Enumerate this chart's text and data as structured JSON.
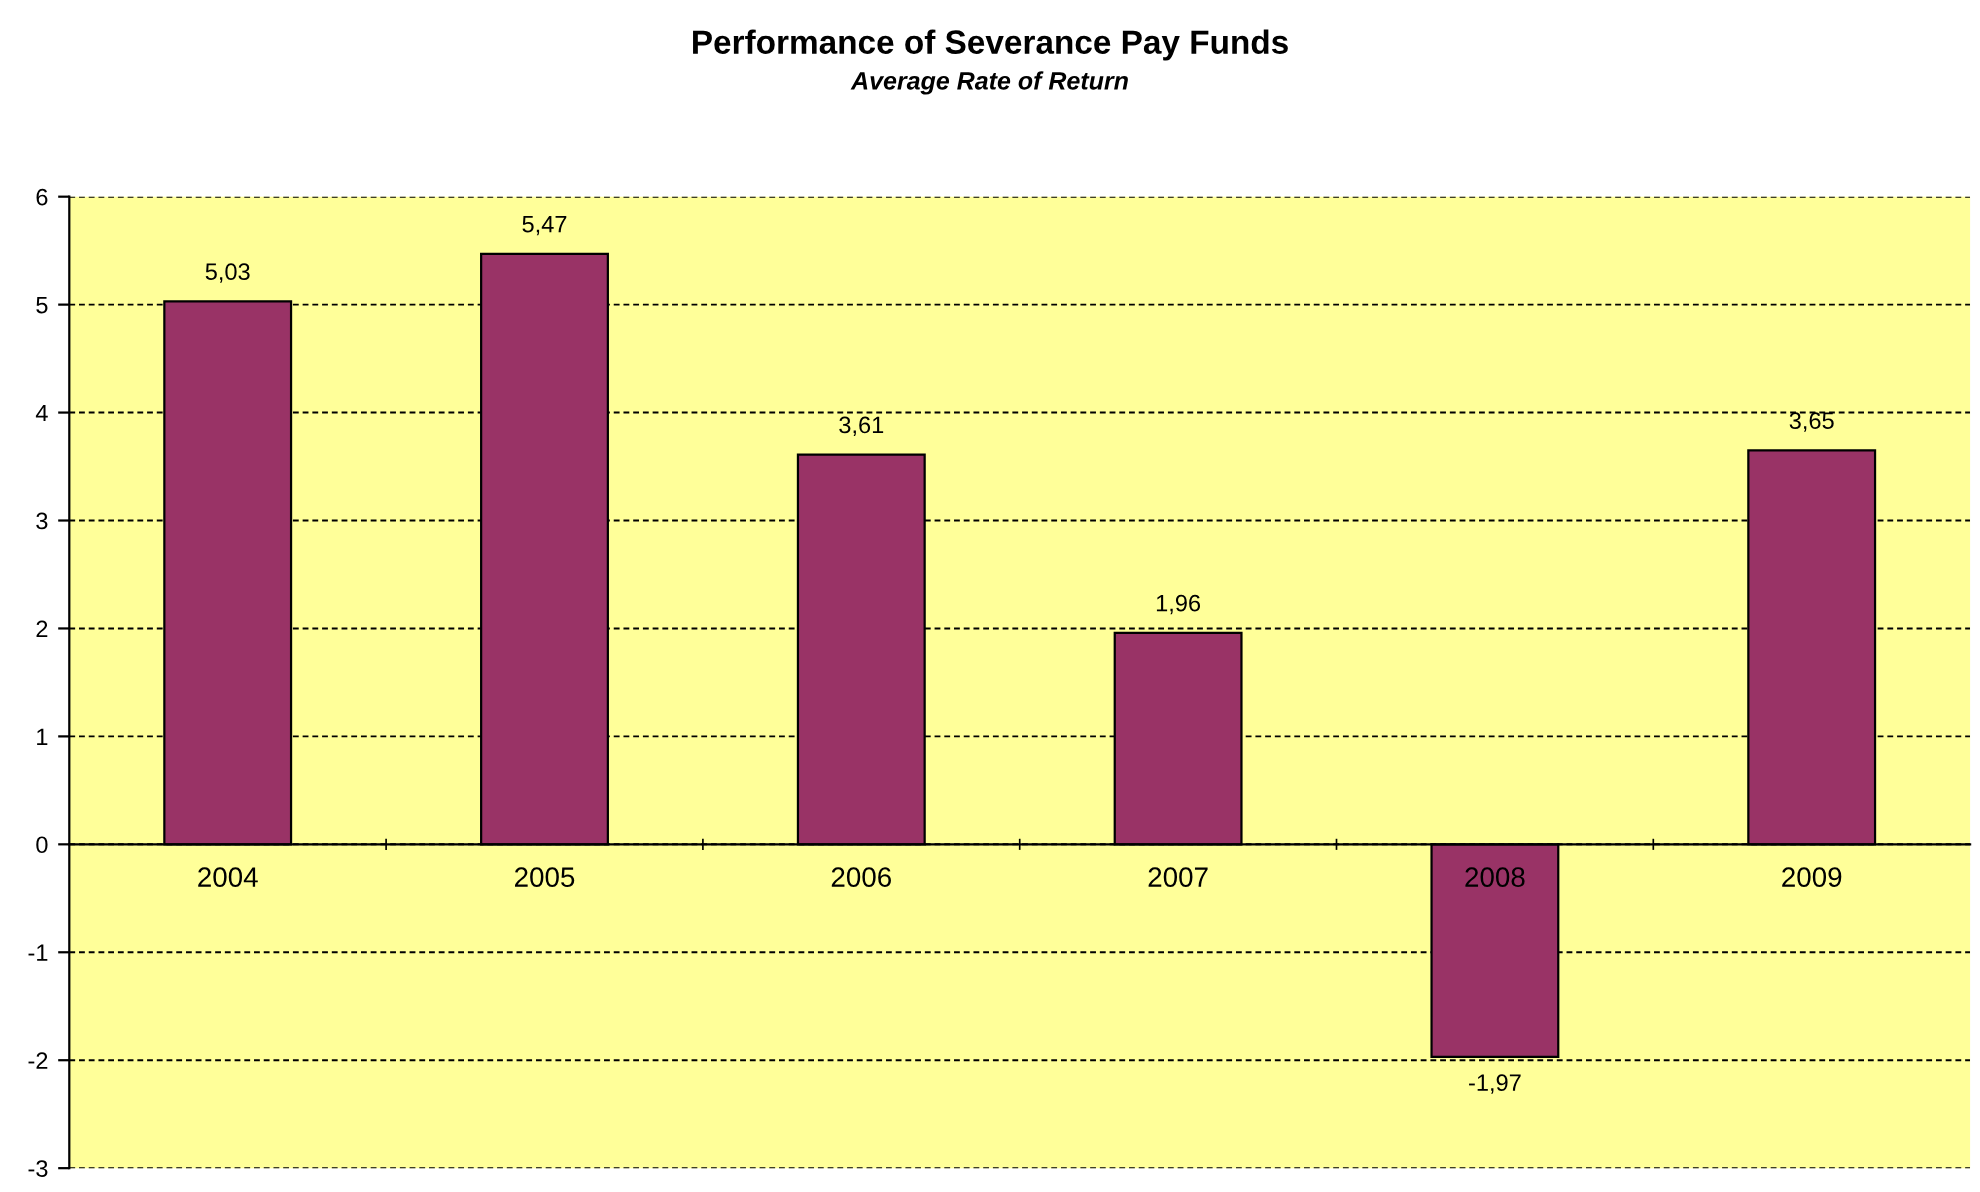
{
  "chart_data": {
    "type": "bar",
    "title": "Performance of Severance Pay Funds",
    "subtitle": "Average Rate of Return",
    "categories": [
      "2004",
      "2005",
      "2006",
      "2007",
      "2008",
      "2009"
    ],
    "series": [
      {
        "color": "#993366",
        "values": [
          5.03,
          5.47,
          3.61,
          1.96,
          -1.97,
          3.65
        ],
        "value_labels": [
          "5,03",
          "5,47",
          "3,61",
          "1,96",
          "-1,97",
          "3,65"
        ]
      }
    ],
    "ylim": [
      -3,
      6
    ],
    "yticks": [
      -3,
      -2,
      -1,
      0,
      1,
      2,
      3,
      4,
      5,
      6
    ],
    "grid": "y",
    "legend": false
  }
}
